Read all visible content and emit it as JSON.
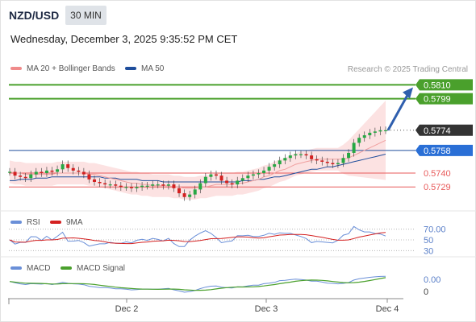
{
  "header": {
    "pair": "NZD/USD",
    "timeframe": "30 MIN",
    "datetime": "Wednesday, December 3, 2025 9:35:52 PM CET"
  },
  "legend": {
    "ma20": "MA 20 + Bollinger Bands",
    "ma50": "MA 50",
    "credit": "Research © 2025 Trading Central"
  },
  "colors": {
    "up": "#27a844",
    "down": "#d42020",
    "ma20": "#e63946",
    "ma50": "#1f4e9c",
    "level_green": "#4aa02c",
    "level_red": "#e85a5a",
    "level_blue": "#2a6fd6",
    "arrow": "#2f5fae"
  },
  "chart_data": [
    {
      "type": "line",
      "title": "",
      "x_ticks": [
        "Dec 2",
        "Dec 3",
        "Dec 4"
      ],
      "levels": [
        {
          "value": 0.581,
          "label": "0.5810",
          "style": "resistance"
        },
        {
          "value": 0.5799,
          "label": "0.5799",
          "style": "resistance"
        },
        {
          "value": 0.5774,
          "label": "0.5774",
          "style": "last"
        },
        {
          "value": 0.5758,
          "label": "0.5758",
          "style": "pivot"
        },
        {
          "value": 0.574,
          "label": "0.5740",
          "style": "support"
        },
        {
          "value": 0.5729,
          "label": "0.5729",
          "style": "support"
        }
      ],
      "ylim": [
        0.571,
        0.5816
      ],
      "close": [
        0.5741,
        0.5738,
        0.5737,
        0.5736,
        0.5739,
        0.5741,
        0.574,
        0.5742,
        0.5741,
        0.5743,
        0.5747,
        0.5744,
        0.5742,
        0.5741,
        0.5739,
        0.5735,
        0.5733,
        0.5732,
        0.5731,
        0.5731,
        0.573,
        0.5729,
        0.5729,
        0.5728,
        0.5729,
        0.573,
        0.573,
        0.5731,
        0.5731,
        0.573,
        0.5731,
        0.5728,
        0.5724,
        0.5721,
        0.5723,
        0.5727,
        0.5732,
        0.5737,
        0.5739,
        0.5738,
        0.5734,
        0.5732,
        0.5731,
        0.5734,
        0.5736,
        0.5738,
        0.5739,
        0.574,
        0.5742,
        0.5745,
        0.5747,
        0.575,
        0.5752,
        0.5754,
        0.5755,
        0.5755,
        0.5754,
        0.5751,
        0.575,
        0.5749,
        0.5748,
        0.5747,
        0.5748,
        0.5752,
        0.5756,
        0.5764,
        0.5768,
        0.577,
        0.5772,
        0.5773,
        0.5774,
        0.5774
      ],
      "ma20": [
        0.5741,
        0.574,
        0.574,
        0.5739,
        0.5739,
        0.5739,
        0.5739,
        0.5739,
        0.5739,
        0.574,
        0.574,
        0.574,
        0.574,
        0.574,
        0.574,
        0.5739,
        0.5739,
        0.5738,
        0.5737,
        0.5736,
        0.5735,
        0.5734,
        0.5733,
        0.5732,
        0.5732,
        0.5731,
        0.5731,
        0.573,
        0.573,
        0.573,
        0.573,
        0.5729,
        0.5729,
        0.5728,
        0.5728,
        0.5728,
        0.5729,
        0.5729,
        0.573,
        0.5731,
        0.5731,
        0.5731,
        0.5731,
        0.5732,
        0.5732,
        0.5733,
        0.5734,
        0.5735,
        0.5737,
        0.5738,
        0.574,
        0.5742,
        0.5743,
        0.5745,
        0.5747,
        0.5748,
        0.5749,
        0.575,
        0.5751,
        0.5751,
        0.5751,
        0.5751,
        0.5751,
        0.5751,
        0.5752,
        0.5754,
        0.5756,
        0.5758,
        0.576,
        0.5762,
        0.5764,
        0.5766
      ],
      "ma50": [
        0.5734,
        0.5734,
        0.5735,
        0.5735,
        0.5735,
        0.5736,
        0.5736,
        0.5736,
        0.5737,
        0.5737,
        0.5737,
        0.5737,
        0.5737,
        0.5737,
        0.5737,
        0.5737,
        0.5737,
        0.5737,
        0.5736,
        0.5736,
        0.5736,
        0.5735,
        0.5735,
        0.5735,
        0.5735,
        0.5734,
        0.5734,
        0.5734,
        0.5734,
        0.5733,
        0.5733,
        0.5733,
        0.5733,
        0.5733,
        0.5733,
        0.5733,
        0.5733,
        0.5733,
        0.5733,
        0.5733,
        0.5733,
        0.5733,
        0.5733,
        0.5733,
        0.5734,
        0.5734,
        0.5734,
        0.5735,
        0.5735,
        0.5736,
        0.5737,
        0.5737,
        0.5738,
        0.5739,
        0.574,
        0.5741,
        0.5742,
        0.5743,
        0.5743,
        0.5744,
        0.5745,
        0.5745,
        0.5746,
        0.5747,
        0.5748,
        0.5749,
        0.575,
        0.5751,
        0.5752,
        0.5753,
        0.5754,
        0.5755
      ]
    },
    {
      "type": "line",
      "title": "",
      "series": [
        {
          "name": "RSI"
        },
        {
          "name": "9MA"
        }
      ],
      "levels": [
        {
          "value": 70,
          "label": "70.00"
        },
        {
          "value": 50,
          "label": "50"
        },
        {
          "value": 30,
          "label": "30"
        }
      ],
      "ylim": [
        20,
        80
      ]
    },
    {
      "type": "line",
      "title": "",
      "series": [
        {
          "name": "MACD"
        },
        {
          "name": "MACD Signal"
        }
      ],
      "levels": [
        {
          "value": 0.0,
          "label": "0.00"
        },
        {
          "value": 0,
          "label": "0"
        }
      ]
    }
  ]
}
